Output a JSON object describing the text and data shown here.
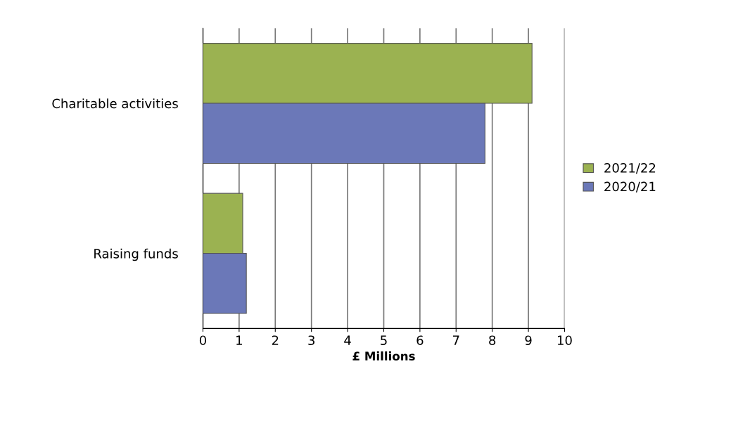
{
  "chart_data": {
    "type": "bar",
    "orientation": "horizontal",
    "xlabel": "£ Millions",
    "categories": [
      "Charitable activities",
      "Raising funds"
    ],
    "series": [
      {
        "name": "2021/22",
        "color": "#9bb251",
        "values": [
          9.1,
          1.1
        ]
      },
      {
        "name": "2020/21",
        "color": "#6b78b8",
        "values": [
          7.8,
          1.2
        ]
      }
    ],
    "xlim": [
      0,
      10
    ],
    "xticks": [
      0,
      1,
      2,
      3,
      4,
      5,
      6,
      7,
      8,
      9,
      10
    ],
    "grid": "x",
    "legend": "right"
  }
}
